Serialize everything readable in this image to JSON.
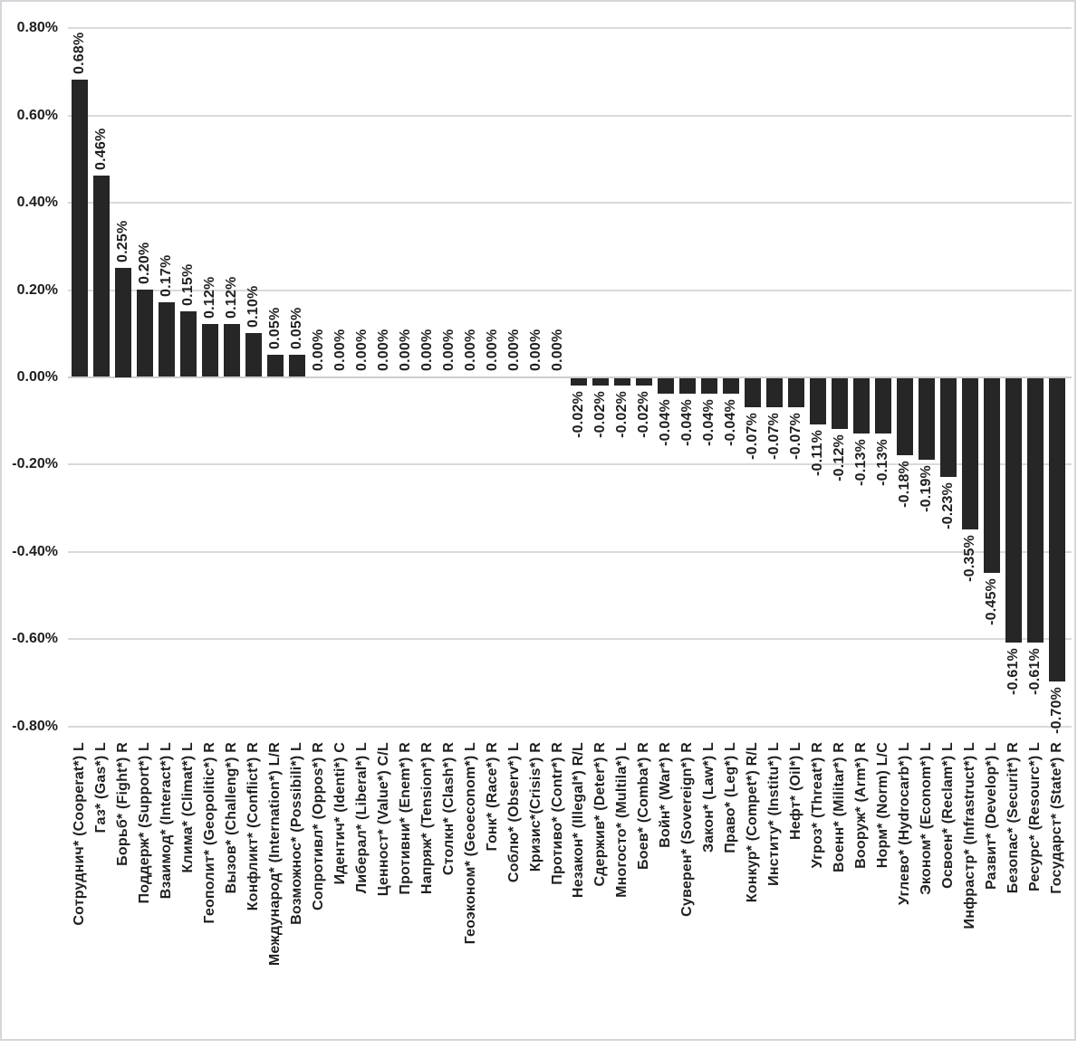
{
  "chart_data": {
    "type": "bar",
    "title": "",
    "xlabel": "",
    "ylabel": "",
    "ylim": [
      -0.8,
      0.8
    ],
    "grid": true,
    "legend": false,
    "bar_color": "#262626",
    "gridline_color": "#d9d9d9",
    "zero_line_color": "#cccccc",
    "frame_color": "#d6d6da",
    "text_color": "#1f1f1f",
    "yticks": [
      "0.80%",
      "0.60%",
      "0.40%",
      "0.20%",
      "0.00%",
      "-0.20%",
      "-0.40%",
      "-0.60%",
      "-0.80%"
    ],
    "ytick_values": [
      0.8,
      0.6,
      0.4,
      0.2,
      0.0,
      -0.2,
      -0.4,
      -0.6,
      -0.8
    ],
    "categories": [
      "Сотруднич* (Cooperat*) L",
      "Газ* (Gas*) L",
      "Борьб* (Fight*) R",
      "Поддерж* (Support*) L",
      "Взаимод* (Interact*) L",
      "Клима* (Climat*) L",
      "Геополит* (Geopolitic*) R",
      "Вызов* (Challeng*) R",
      "Конфликт* (Conflict*) R",
      "Международ* (Internation*) L/R",
      "Возможнос* (Possibili*) L",
      "Сопротивл* (Oppos*) R",
      "Идентич* (Identi*) C",
      "Либерал* (Liberal*) L",
      "Ценност* (Value*) C/L",
      "Противни* (Enem*) R",
      "Напряж* (Tension*) R",
      "Столкн* (Clash*) R",
      "Геоэконом* (Geoeconom*) L",
      "Гонк* (Race*) R",
      "Соблю* (Observ*) L",
      "Кризис*(Crisis*) R",
      "Противо* (Contr*) R",
      "Незакон* (Illegal*) R/L",
      "Сдержив* (Deter*) R",
      "Многосто* (Multila*) L",
      "Боев* (Comba*) R",
      "Войн* (War*) R",
      "Суверен* (Sovereign*) R",
      "Закон* (Law*) L",
      "Право* (Leg*) L",
      "Конкур* (Compet*) R/L",
      "Институ* (Institu*) L",
      "Нефт* (Oil*) L",
      "Угроз* (Threat*) R",
      "Военн* (Militar*) R",
      "Вооруж* (Arm*) R",
      "Норм* (Norm) L/C",
      "Углево* (Hydrocarb*) L",
      "Эконом* (Econom*) L",
      "Освоен* (Reclam*) L",
      "Инфрастр* (Infrastruct*) L",
      "Развит* (Develop*) L",
      "Безопас* (Securit*) R",
      "Ресурс* (Resourc*) L",
      "Государст* (State*) R"
    ],
    "values": [
      0.68,
      0.46,
      0.25,
      0.2,
      0.17,
      0.15,
      0.12,
      0.12,
      0.1,
      0.05,
      0.05,
      0.0,
      0.0,
      0.0,
      0.0,
      0.0,
      0.0,
      0.0,
      0.0,
      0.0,
      0.0,
      0.0,
      0.0,
      -0.02,
      -0.02,
      -0.02,
      -0.02,
      -0.04,
      -0.04,
      -0.04,
      -0.04,
      -0.07,
      -0.07,
      -0.07,
      -0.11,
      -0.12,
      -0.13,
      -0.13,
      -0.18,
      -0.19,
      -0.23,
      -0.35,
      -0.45,
      -0.61,
      -0.61,
      -0.7
    ],
    "value_labels": [
      "0.68%",
      "0.46%",
      "0.25%",
      "0.20%",
      "0.17%",
      "0.15%",
      "0.12%",
      "0.12%",
      "0.10%",
      "0.05%",
      "0.05%",
      "0.00%",
      "0.00%",
      "0.00%",
      "0.00%",
      "0.00%",
      "0.00%",
      "0.00%",
      "0.00%",
      "0.00%",
      "0.00%",
      "0.00%",
      "0.00%",
      "-0.02%",
      "-0.02%",
      "-0.02%",
      "-0.02%",
      "-0.04%",
      "-0.04%",
      "-0.04%",
      "-0.04%",
      "-0.07%",
      "-0.07%",
      "-0.07%",
      "-0.11%",
      "-0.12%",
      "-0.13%",
      "-0.13%",
      "-0.18%",
      "-0.19%",
      "-0.23%",
      "-0.35%",
      "-0.45%",
      "-0.61%",
      "-0.61%",
      "-0.70%"
    ]
  }
}
